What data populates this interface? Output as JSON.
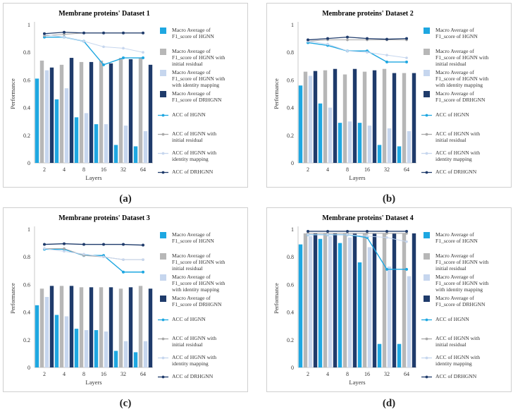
{
  "figure": {
    "captions": [
      "(a)",
      "(b)",
      "(c)",
      "(d)"
    ]
  },
  "legend": {
    "entries": [
      {
        "kind": "bar",
        "lines": [
          "Macro Average of",
          "F1_score of HGNN"
        ],
        "color": "#1ea7e1"
      },
      {
        "kind": "bar",
        "lines": [
          "Macro Average of",
          "F1_score of HGNN with",
          "initial residual"
        ],
        "color": "#b7b7b7"
      },
      {
        "kind": "bar",
        "lines": [
          "Macro Average of",
          "F1_score of HGNN with",
          "with identity mapping"
        ],
        "color": "#c6d6ee"
      },
      {
        "kind": "bar",
        "lines": [
          "Macro Average of",
          "F1_score of DRHGNN"
        ],
        "color": "#1f3b6b"
      },
      {
        "kind": "line",
        "lines": [
          "ACC of HGNN"
        ],
        "color": "#1ea7e1"
      },
      {
        "kind": "line",
        "lines": [
          "ACC of HGNN with",
          "initial residual"
        ],
        "color": "#a8a8a8"
      },
      {
        "kind": "line",
        "lines": [
          "ACC of HGNN with",
          "identity mapping"
        ],
        "color": "#c6d6ee"
      },
      {
        "kind": "line",
        "lines": [
          "ACC of DRHGNN"
        ],
        "color": "#1f3b6b"
      }
    ]
  },
  "chart_data": [
    {
      "type": "bar",
      "title": "Membrane proteins' Dataset 1",
      "xlabel": "Layers",
      "ylabel": "Performance",
      "categories": [
        "2",
        "4",
        "8",
        "16",
        "32",
        "64"
      ],
      "ylim": [
        0,
        1
      ],
      "yticks": [
        "0",
        "0.2",
        "0.4",
        "0.6",
        "0.8",
        "1"
      ],
      "bar_series": [
        {
          "name": "Macro Average of F1_score of HGNN",
          "values": [
            0.61,
            0.46,
            0.33,
            0.28,
            0.13,
            0.12
          ]
        },
        {
          "name": "Macro Average of F1_score of HGNN with initial residual",
          "values": [
            0.74,
            0.71,
            0.73,
            0.74,
            0.76,
            0.76
          ]
        },
        {
          "name": "Macro Average of F1_score of HGNN with with identity mapping",
          "values": [
            0.67,
            0.54,
            0.36,
            0.28,
            0.27,
            0.23
          ]
        },
        {
          "name": "Macro Average of F1_score of DRHGNN",
          "values": [
            0.69,
            0.76,
            0.73,
            0.72,
            0.75,
            0.71
          ]
        }
      ],
      "line_series": [
        {
          "name": "ACC of HGNN",
          "values": [
            0.91,
            0.91,
            0.88,
            0.71,
            0.76,
            0.76
          ]
        },
        {
          "name": "ACC of HGNN with initial residual",
          "values": [
            0.92,
            0.93,
            0.94,
            0.94,
            0.94,
            0.94
          ]
        },
        {
          "name": "ACC of HGNN with identity mapping",
          "values": [
            0.93,
            0.91,
            0.88,
            0.84,
            0.83,
            0.8
          ]
        },
        {
          "name": "ACC of DRHGNN",
          "values": [
            0.935,
            0.945,
            0.94,
            0.94,
            0.94,
            0.94
          ]
        }
      ]
    },
    {
      "type": "bar",
      "title": "Membrane proteins' Dataset 2",
      "xlabel": "Layers",
      "ylabel": "Performance",
      "categories": [
        "2",
        "4",
        "8",
        "16",
        "32",
        "64"
      ],
      "ylim": [
        0,
        1
      ],
      "yticks": [
        "0",
        "0.2",
        "0.4",
        "0.6",
        "0.8",
        "1"
      ],
      "bar_series": [
        {
          "name": "Macro Average of F1_score of HGNN",
          "values": [
            0.56,
            0.43,
            0.29,
            0.29,
            0.13,
            0.12
          ]
        },
        {
          "name": "Macro Average of F1_score of HGNN with initial residual",
          "values": [
            0.66,
            0.67,
            0.64,
            0.66,
            0.68,
            0.65
          ]
        },
        {
          "name": "Macro Average of F1_score of HGNN with with identity mapping",
          "values": [
            0.63,
            0.4,
            0.3,
            0.27,
            0.25,
            0.23
          ]
        },
        {
          "name": "Macro Average of F1_score of DRHGNN",
          "values": [
            0.665,
            0.68,
            0.68,
            0.67,
            0.65,
            0.65
          ]
        }
      ],
      "line_series": [
        {
          "name": "ACC of HGNN",
          "values": [
            0.87,
            0.85,
            0.81,
            0.81,
            0.73,
            0.73
          ]
        },
        {
          "name": "ACC of HGNN with initial residual",
          "values": [
            0.88,
            0.89,
            0.89,
            0.89,
            0.89,
            0.89
          ]
        },
        {
          "name": "ACC of HGNN with identity mapping",
          "values": [
            0.88,
            0.86,
            0.81,
            0.8,
            0.78,
            0.76
          ]
        },
        {
          "name": "ACC of DRHGNN",
          "values": [
            0.89,
            0.9,
            0.91,
            0.9,
            0.895,
            0.9
          ]
        }
      ]
    },
    {
      "type": "bar",
      "title": "Membrane proteins' Dataset 3",
      "xlabel": "Layers",
      "ylabel": "Performance",
      "categories": [
        "2",
        "4",
        "8",
        "16",
        "32",
        "64"
      ],
      "ylim": [
        0,
        1
      ],
      "yticks": [
        "0",
        "0.2",
        "0.4",
        "0.6",
        "0.8",
        "1"
      ],
      "bar_series": [
        {
          "name": "Macro Average of F1_score of HGNN",
          "values": [
            0.45,
            0.38,
            0.28,
            0.27,
            0.12,
            0.11
          ]
        },
        {
          "name": "Macro Average of F1_score of HGNN with initial residual",
          "values": [
            0.57,
            0.59,
            0.58,
            0.58,
            0.57,
            0.59
          ]
        },
        {
          "name": "Macro Average of F1_score of HGNN with with identity mapping",
          "values": [
            0.51,
            0.37,
            0.27,
            0.26,
            0.19,
            0.19
          ]
        },
        {
          "name": "Macro Average of F1_score of DRHGNN",
          "values": [
            0.59,
            0.59,
            0.58,
            0.58,
            0.58,
            0.57
          ]
        }
      ],
      "line_series": [
        {
          "name": "ACC of HGNN",
          "values": [
            0.855,
            0.855,
            0.81,
            0.81,
            0.69,
            0.69
          ]
        },
        {
          "name": "ACC of HGNN with initial residual",
          "values": [
            0.86,
            0.86,
            0.81,
            0.8,
            0.78,
            0.78
          ]
        },
        {
          "name": "ACC of HGNN with identity mapping",
          "values": [
            0.86,
            0.84,
            0.82,
            0.8,
            0.78,
            0.78
          ]
        },
        {
          "name": "ACC of DRHGNN",
          "values": [
            0.89,
            0.895,
            0.89,
            0.89,
            0.89,
            0.885
          ]
        }
      ]
    },
    {
      "type": "bar",
      "title": "Membrane proteins' Dataset 4",
      "xlabel": "Layers",
      "ylabel": "Performance",
      "categories": [
        "2",
        "4",
        "8",
        "16",
        "32",
        "64"
      ],
      "ylim": [
        0,
        1
      ],
      "yticks": [
        "0",
        "0.2",
        "0.4",
        "0.6",
        "0.8",
        "1"
      ],
      "bar_series": [
        {
          "name": "Macro Average of F1_score of HGNN",
          "values": [
            0.89,
            0.93,
            0.9,
            0.76,
            0.17,
            0.17
          ]
        },
        {
          "name": "Macro Average of F1_score of HGNN with initial residual",
          "values": [
            0.97,
            0.97,
            0.97,
            0.97,
            0.97,
            0.97
          ]
        },
        {
          "name": "Macro Average of F1_score of HGNN with with identity mapping",
          "values": [
            0.95,
            0.95,
            0.94,
            0.87,
            0.73,
            0.66
          ]
        },
        {
          "name": "Macro Average of F1_score of DRHGNN",
          "values": [
            0.97,
            0.97,
            0.97,
            0.97,
            0.97,
            0.97
          ]
        }
      ],
      "line_series": [
        {
          "name": "ACC of HGNN",
          "values": [
            0.96,
            0.96,
            0.96,
            0.94,
            0.71,
            0.71
          ]
        },
        {
          "name": "ACC of HGNN with initial residual",
          "values": [
            0.97,
            0.97,
            0.97,
            0.97,
            0.97,
            0.97
          ]
        },
        {
          "name": "ACC of HGNN with identity mapping",
          "values": [
            0.96,
            0.96,
            0.96,
            0.95,
            0.94,
            0.91
          ]
        },
        {
          "name": "ACC of DRHGNN",
          "values": [
            0.985,
            0.985,
            0.985,
            0.985,
            0.985,
            0.985
          ]
        }
      ]
    }
  ]
}
